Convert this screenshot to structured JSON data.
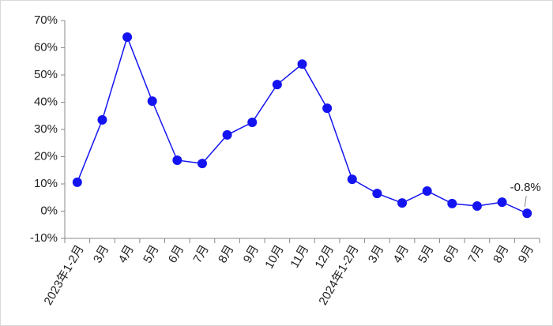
{
  "chart_data": {
    "type": "line",
    "categories": [
      "2023年1-2月",
      "3月",
      "4月",
      "5月",
      "6月",
      "7月",
      "8月",
      "9月",
      "10月",
      "11月",
      "12月",
      "2024年1-2月",
      "3月",
      "4月",
      "5月",
      "6月",
      "7月",
      "8月",
      "9月"
    ],
    "series": [
      {
        "color": "#1414f0",
        "values": [
          10.6,
          33.5,
          63.9,
          40.4,
          18.7,
          17.5,
          28,
          32.6,
          46.5,
          54,
          37.8,
          11.7,
          6.5,
          3.0,
          7.4,
          2.8,
          1.9,
          3.3,
          -0.8
        ],
        "value_labels": [
          null,
          null,
          null,
          null,
          null,
          null,
          null,
          null,
          null,
          null,
          null,
          null,
          null,
          null,
          null,
          null,
          null,
          null,
          "-0.8%"
        ]
      }
    ],
    "ylim": [
      -10,
      70
    ],
    "yticks": [
      {
        "value": -10,
        "label": "-10%"
      },
      {
        "value": 0,
        "label": "0%"
      },
      {
        "value": 10,
        "label": "10%"
      },
      {
        "value": 20,
        "label": "20%"
      },
      {
        "value": 30,
        "label": "30%"
      },
      {
        "value": 40,
        "label": "40%"
      },
      {
        "value": 50,
        "label": "50%"
      },
      {
        "value": 60,
        "label": "60%"
      },
      {
        "value": 70,
        "label": "70%"
      }
    ],
    "grid": false
  }
}
